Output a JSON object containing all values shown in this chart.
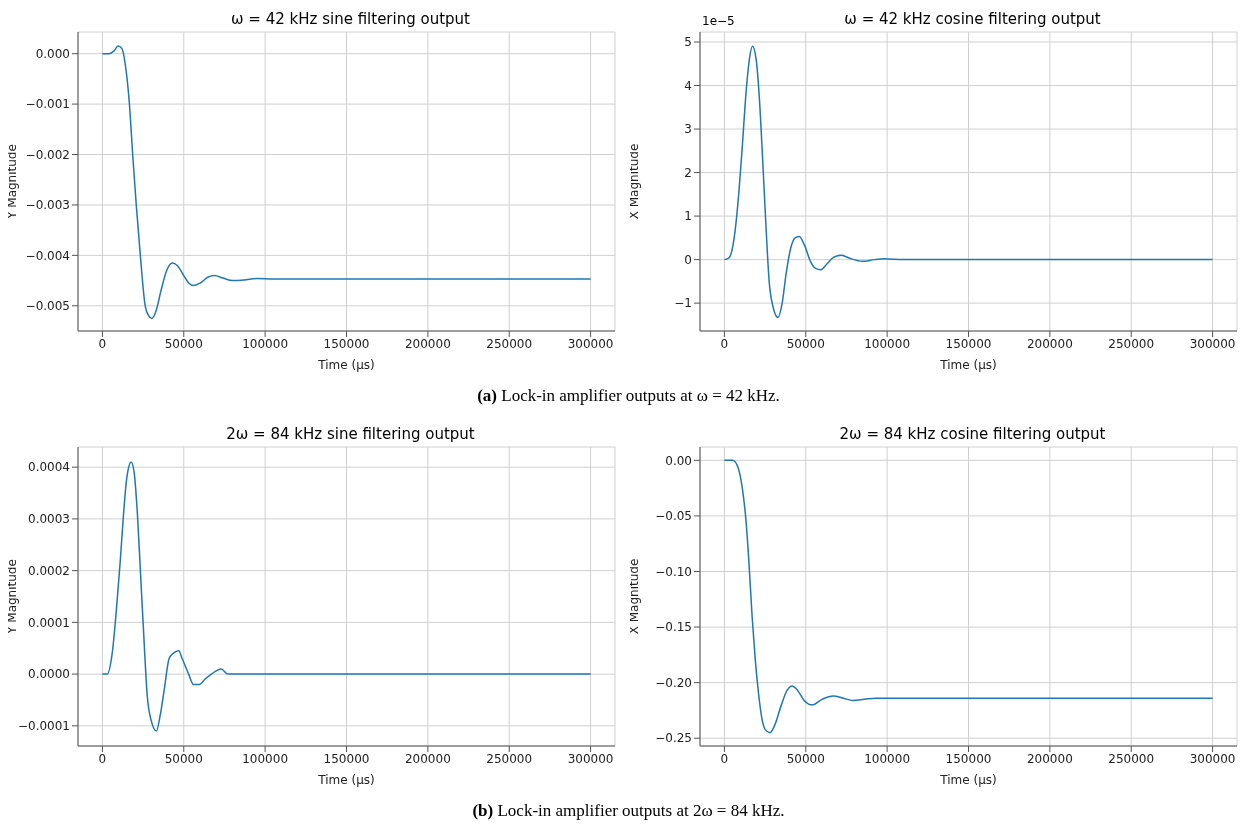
{
  "chart_data": [
    {
      "type": "line",
      "title": "ω = 42 kHz sine filtering output",
      "xlabel": "Time (μs)",
      "ylabel": "Y Magnitude",
      "annotations": [
        "(a) Lock-in amplifier outputs at ω = 42 kHz."
      ],
      "grid": true,
      "marker": "none",
      "line_style": "solid",
      "xlim": [
        -15000,
        315000
      ],
      "xticks": [
        0,
        50000,
        100000,
        150000,
        200000,
        250000,
        300000
      ],
      "ylim": [
        -0.0055,
        0.00043
      ],
      "yticks": [
        {
          "value": 0,
          "label": "0.000"
        },
        {
          "value": -0.001,
          "label": "−0.001"
        },
        {
          "value": -0.002,
          "label": "−0.002"
        },
        {
          "value": -0.003,
          "label": "−0.003"
        },
        {
          "value": -0.004,
          "label": "−0.004"
        },
        {
          "value": -0.005,
          "label": "−0.005"
        }
      ],
      "x": [
        0,
        4000,
        7000,
        9700,
        12000,
        14000,
        16600,
        18600,
        20800,
        23300,
        26300,
        28500,
        30400,
        33000,
        36000,
        39500,
        43000,
        46000,
        50000,
        53000,
        56000,
        60000,
        65000,
        69000,
        74000,
        80000,
        87000,
        95000,
        105000,
        120000,
        300000
      ],
      "series": [
        {
          "color": "#1f77b4",
          "values": [
            0,
            0,
            5e-05,
            0.00015,
            0.0001,
            -0.0002,
            -0.001,
            -0.002,
            -0.003,
            -0.004,
            -0.005,
            -0.0052,
            -0.00525,
            -0.0051,
            -0.0047,
            -0.0043,
            -0.00415,
            -0.0042,
            -0.0044,
            -0.00455,
            -0.0046,
            -0.00455,
            -0.00443,
            -0.0044,
            -0.00445,
            -0.0045,
            -0.00449,
            -0.00446,
            -0.00447,
            -0.00447,
            -0.00447
          ]
        }
      ]
    },
    {
      "type": "line",
      "title": "ω = 42 kHz cosine filtering output",
      "xlabel": "Time (μs)",
      "ylabel": "X Magnitude",
      "annotations": [
        "1e−5"
      ],
      "grid": true,
      "marker": "none",
      "line_style": "solid",
      "xlim": [
        -15000,
        315000
      ],
      "xticks": [
        0,
        50000,
        100000,
        150000,
        200000,
        250000,
        300000
      ],
      "ylim": [
        -1.64,
        5.23
      ],
      "yticks": [
        {
          "value": -1,
          "label": "−1"
        },
        0,
        1,
        2,
        3,
        4,
        5
      ],
      "x": [
        0,
        3000,
        6000,
        9000,
        11000,
        13000,
        15000,
        17300,
        19500,
        21500,
        23500,
        25500,
        27500,
        30000,
        32900,
        35500,
        38000,
        41000,
        43500,
        46000,
        49000,
        53000,
        56000,
        59300,
        63000,
        67000,
        72000,
        77000,
        85000,
        92000,
        98000,
        110000,
        125000,
        300000
      ],
      "series": [
        {
          "color": "#1f77b4",
          "values": [
            0,
            0.05,
            0.5,
            1.6,
            2.6,
            3.7,
            4.5,
            4.9,
            4.6,
            3.7,
            2.3,
            0.8,
            -0.5,
            -1.1,
            -1.33,
            -1.0,
            -0.3,
            0.3,
            0.5,
            0.53,
            0.35,
            -0.05,
            -0.2,
            -0.23,
            -0.1,
            0.05,
            0.1,
            0.03,
            -0.04,
            0,
            0.02,
            0,
            0,
            0
          ]
        }
      ]
    },
    {
      "type": "line",
      "title": "2ω = 84 kHz sine filtering output",
      "xlabel": "Time (μs)",
      "ylabel": "Y Magnitude",
      "annotations": [
        "(b) Lock-in amplifier outputs at 2ω = 84 kHz."
      ],
      "grid": true,
      "marker": "none",
      "line_style": "solid",
      "xlim": [
        -15000,
        315000
      ],
      "xticks": [
        0,
        50000,
        100000,
        150000,
        200000,
        250000,
        300000
      ],
      "ylim": [
        -0.000139,
        0.000439
      ],
      "yticks": [
        {
          "value": -0.0001,
          "label": "−0.0001"
        },
        {
          "value": 0,
          "label": "0.0000"
        },
        {
          "value": 0.0001,
          "label": "0.0001"
        },
        {
          "value": 0.0002,
          "label": "0.0002"
        },
        {
          "value": 0.0003,
          "label": "0.0003"
        },
        {
          "value": 0.0004,
          "label": "0.0004"
        }
      ],
      "x": [
        0,
        3000,
        6000,
        9000,
        11000,
        13000,
        15000,
        17700,
        19500,
        21500,
        23500,
        25500,
        27500,
        30000,
        33200,
        35500,
        38000,
        41000,
        43500,
        46900,
        49000,
        53000,
        56000,
        59700,
        63000,
        67000,
        73000,
        77000,
        85000,
        92000,
        98000,
        110000,
        125000,
        300000
      ],
      "series": [
        {
          "color": "#1f77b4",
          "values": [
            0,
            0,
            4e-05,
            0.00014,
            0.00022,
            0.00031,
            0.00038,
            0.00041,
            0.00039,
            0.00031,
            0.00019,
            7e-05,
            -4e-05,
            -9e-05,
            -0.00011,
            -8e-05,
            -3e-05,
            3e-05,
            4e-05,
            4.5e-05,
            3e-05,
            0,
            -2e-05,
            -2e-05,
            -1e-05,
            0,
            1e-05,
            0,
            0,
            0,
            0,
            0,
            0,
            0
          ]
        }
      ]
    },
    {
      "type": "line",
      "title": "2ω = 84 kHz cosine filtering output",
      "xlabel": "Time (μs)",
      "ylabel": "X Magnitude",
      "grid": true,
      "marker": "none",
      "line_style": "solid",
      "xlim": [
        -15000,
        315000
      ],
      "xticks": [
        0,
        50000,
        100000,
        150000,
        200000,
        250000,
        300000
      ],
      "ylim": [
        -0.257,
        0.012
      ],
      "yticks": [
        {
          "value": -0.25,
          "label": "−0.25"
        },
        {
          "value": -0.2,
          "label": "−0.20"
        },
        {
          "value": -0.15,
          "label": "−0.15"
        },
        {
          "value": -0.1,
          "label": "−0.10"
        },
        {
          "value": -0.05,
          "label": "−0.05"
        },
        {
          "value": 0,
          "label": "0.00"
        }
      ],
      "x": [
        0,
        5000,
        8000,
        11000,
        13000,
        15000,
        17000,
        19000,
        21000,
        23000,
        25000,
        28000,
        31000,
        35000,
        38500,
        41600,
        45000,
        49000,
        53900,
        60000,
        67000,
        73000,
        79000,
        86000,
        93000,
        105000,
        300000
      ],
      "series": [
        {
          "color": "#1f77b4",
          "values": [
            0,
            0,
            -0.005,
            -0.025,
            -0.05,
            -0.09,
            -0.14,
            -0.18,
            -0.21,
            -0.232,
            -0.242,
            -0.245,
            -0.238,
            -0.22,
            -0.207,
            -0.203,
            -0.207,
            -0.216,
            -0.22,
            -0.215,
            -0.212,
            -0.214,
            -0.216,
            -0.215,
            -0.214,
            -0.214,
            -0.214
          ]
        }
      ]
    }
  ]
}
